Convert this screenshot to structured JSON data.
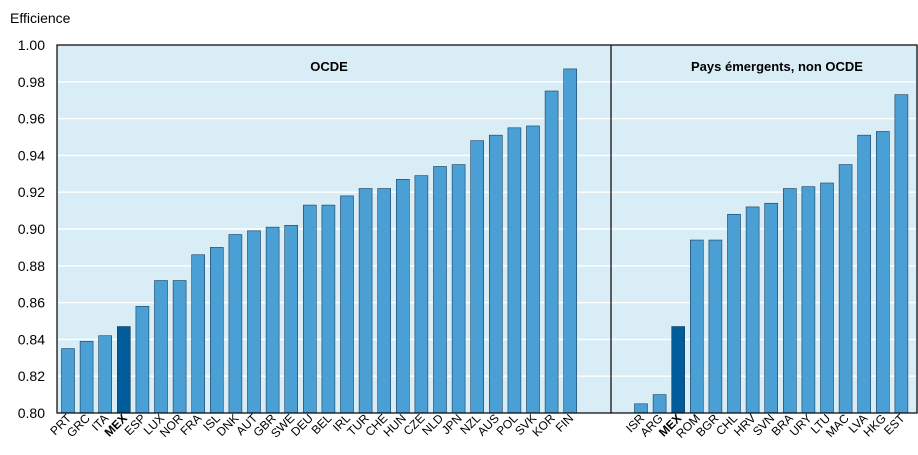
{
  "chart_data": {
    "type": "bar",
    "ylabel": "Efficience",
    "ylim": [
      0.8,
      1.0
    ],
    "yticks": [
      "0.80",
      "0.82",
      "0.84",
      "0.86",
      "0.88",
      "0.90",
      "0.92",
      "0.94",
      "0.96",
      "0.98",
      "1.00"
    ],
    "grid": "horizontal",
    "highlight": "MEX",
    "colors": {
      "bar": "#4a9fd4",
      "highlight": "#005b9a",
      "plot_bg": "#d9edf7",
      "grid": "#ffffff"
    },
    "panels": [
      {
        "title": "OCDE",
        "categories": [
          "PRT",
          "GRC",
          "ITA",
          "MEX",
          "ESP",
          "LUX",
          "NOR",
          "FRA",
          "ISL",
          "DNK",
          "AUT",
          "GBR",
          "SWE",
          "DEU",
          "BEL",
          "IRL",
          "TUR",
          "CHE",
          "HUN",
          "CZE",
          "NLD",
          "JPN",
          "NZL",
          "AUS",
          "POL",
          "SVK",
          "KOR",
          "FIN"
        ],
        "values": [
          0.835,
          0.839,
          0.842,
          0.847,
          0.858,
          0.872,
          0.872,
          0.886,
          0.89,
          0.897,
          0.899,
          0.901,
          0.902,
          0.913,
          0.913,
          0.918,
          0.922,
          0.922,
          0.927,
          0.929,
          0.934,
          0.935,
          0.948,
          0.951,
          0.955,
          0.956,
          0.975,
          0.987
        ]
      },
      {
        "title": "Pays émergents, non OCDE",
        "categories": [
          "ISR",
          "ARG",
          "MEX",
          "ROM",
          "BGR",
          "CHL",
          "HRV",
          "SVN",
          "BRA",
          "URY",
          "LTU",
          "MAC",
          "LVA",
          "HKG",
          "EST"
        ],
        "values": [
          0.805,
          0.81,
          0.847,
          0.894,
          0.894,
          0.908,
          0.912,
          0.914,
          0.922,
          0.923,
          0.925,
          0.935,
          0.951,
          0.953,
          0.973
        ]
      }
    ]
  }
}
